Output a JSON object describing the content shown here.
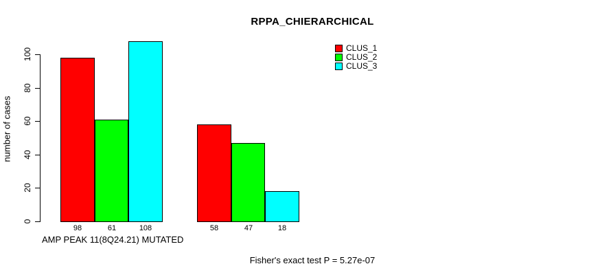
{
  "chart_data": {
    "type": "bar",
    "title": "RPPA_CHIERARCHICAL",
    "ylabel": "number of cases",
    "xlabel": "AMP PEAK 11(8Q24.21) MUTATED",
    "annotation": "Fisher's exact test P = 5.27e-07",
    "yticks": [
      0,
      20,
      40,
      60,
      80,
      100
    ],
    "ylim": [
      0,
      110
    ],
    "grid": false,
    "legend_position": "top-right",
    "groups": 2,
    "series": [
      {
        "name": "CLUS_1",
        "color": "#ff0000",
        "values": [
          98,
          58
        ]
      },
      {
        "name": "CLUS_2",
        "color": "#00ff00",
        "values": [
          61,
          47
        ]
      },
      {
        "name": "CLUS_3",
        "color": "#00ffff",
        "values": [
          108,
          18
        ]
      }
    ],
    "bar_value_labels": [
      [
        "98",
        "61",
        "108"
      ],
      [
        "58",
        "47",
        "18"
      ]
    ]
  }
}
